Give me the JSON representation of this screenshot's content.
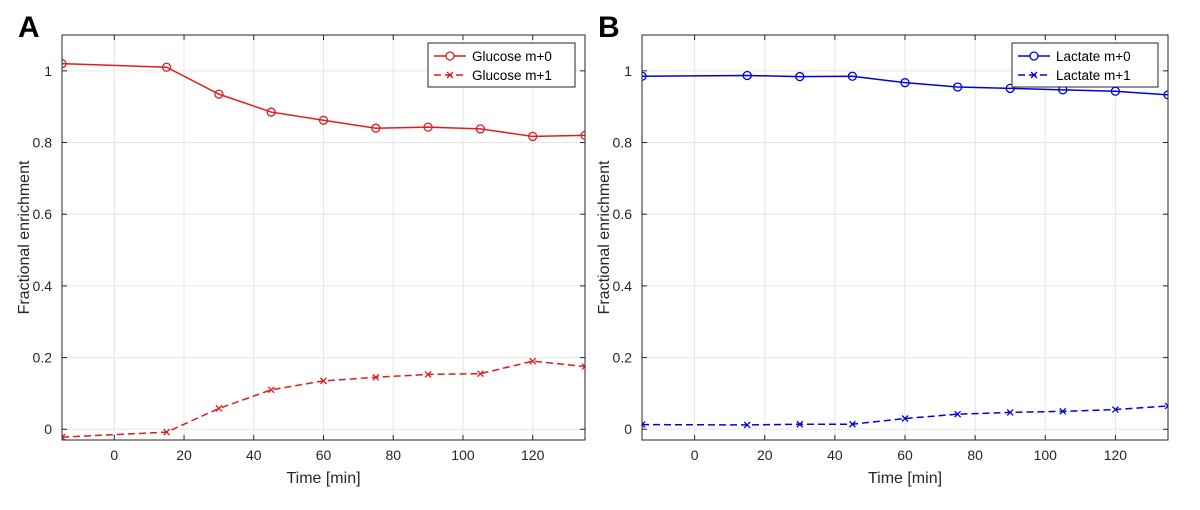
{
  "chart_data": [
    {
      "panel_label": "A",
      "type": "line",
      "xlabel": "Time [min]",
      "ylabel": "Fractional enrichment",
      "xlim": [
        -15,
        135
      ],
      "ylim": [
        -0.03,
        1.1
      ],
      "xticks": [
        0,
        20,
        40,
        60,
        80,
        100,
        120
      ],
      "yticks": [
        0,
        0.2,
        0.4,
        0.6,
        0.8,
        1
      ],
      "xtick_labels": [
        "0",
        "20",
        "40",
        "60",
        "80",
        "100",
        "120"
      ],
      "ytick_labels": [
        "0",
        "0.2",
        "0.4",
        "0.6",
        "0.8",
        "1"
      ],
      "grid": true,
      "legend_position": "top-right",
      "series": [
        {
          "name": "Glucose m+0",
          "color": "#e41a1c",
          "line_style": "solid",
          "marker": "circle",
          "x": [
            -15,
            15,
            30,
            45,
            60,
            75,
            90,
            105,
            120,
            135
          ],
          "y": [
            1.02,
            1.01,
            0.935,
            0.885,
            0.862,
            0.84,
            0.843,
            0.838,
            0.817,
            0.82
          ]
        },
        {
          "name": "Glucose m+1",
          "color": "#e41a1c",
          "line_style": "dashed",
          "marker": "x",
          "x": [
            -15,
            15,
            30,
            45,
            60,
            75,
            90,
            105,
            120,
            135
          ],
          "y": [
            -0.022,
            -0.008,
            0.058,
            0.11,
            0.135,
            0.145,
            0.153,
            0.155,
            0.19,
            0.175
          ]
        }
      ]
    },
    {
      "panel_label": "B",
      "type": "line",
      "xlabel": "Time [min]",
      "ylabel": "Fractional enrichment",
      "xlim": [
        -15,
        135
      ],
      "ylim": [
        -0.03,
        1.1
      ],
      "xticks": [
        0,
        20,
        40,
        60,
        80,
        100,
        120
      ],
      "yticks": [
        0,
        0.2,
        0.4,
        0.6,
        0.8,
        1
      ],
      "xtick_labels": [
        "0",
        "20",
        "40",
        "60",
        "80",
        "100",
        "120"
      ],
      "ytick_labels": [
        "0",
        "0.2",
        "0.4",
        "0.6",
        "0.8",
        "1"
      ],
      "grid": true,
      "legend_position": "top-right",
      "series": [
        {
          "name": "Lactate m+0",
          "color": "#0000e6",
          "line_style": "solid",
          "marker": "circle",
          "x": [
            -15,
            15,
            30,
            45,
            60,
            75,
            90,
            105,
            120,
            135
          ],
          "y": [
            0.985,
            0.987,
            0.984,
            0.985,
            0.967,
            0.955,
            0.951,
            0.947,
            0.943,
            0.933
          ]
        },
        {
          "name": "Lactate m+1",
          "color": "#0000e6",
          "line_style": "dashed",
          "marker": "x",
          "x": [
            -15,
            15,
            30,
            45,
            60,
            75,
            90,
            105,
            120,
            135
          ],
          "y": [
            0.013,
            0.012,
            0.014,
            0.014,
            0.03,
            0.042,
            0.047,
            0.05,
            0.055,
            0.065
          ]
        }
      ]
    }
  ]
}
